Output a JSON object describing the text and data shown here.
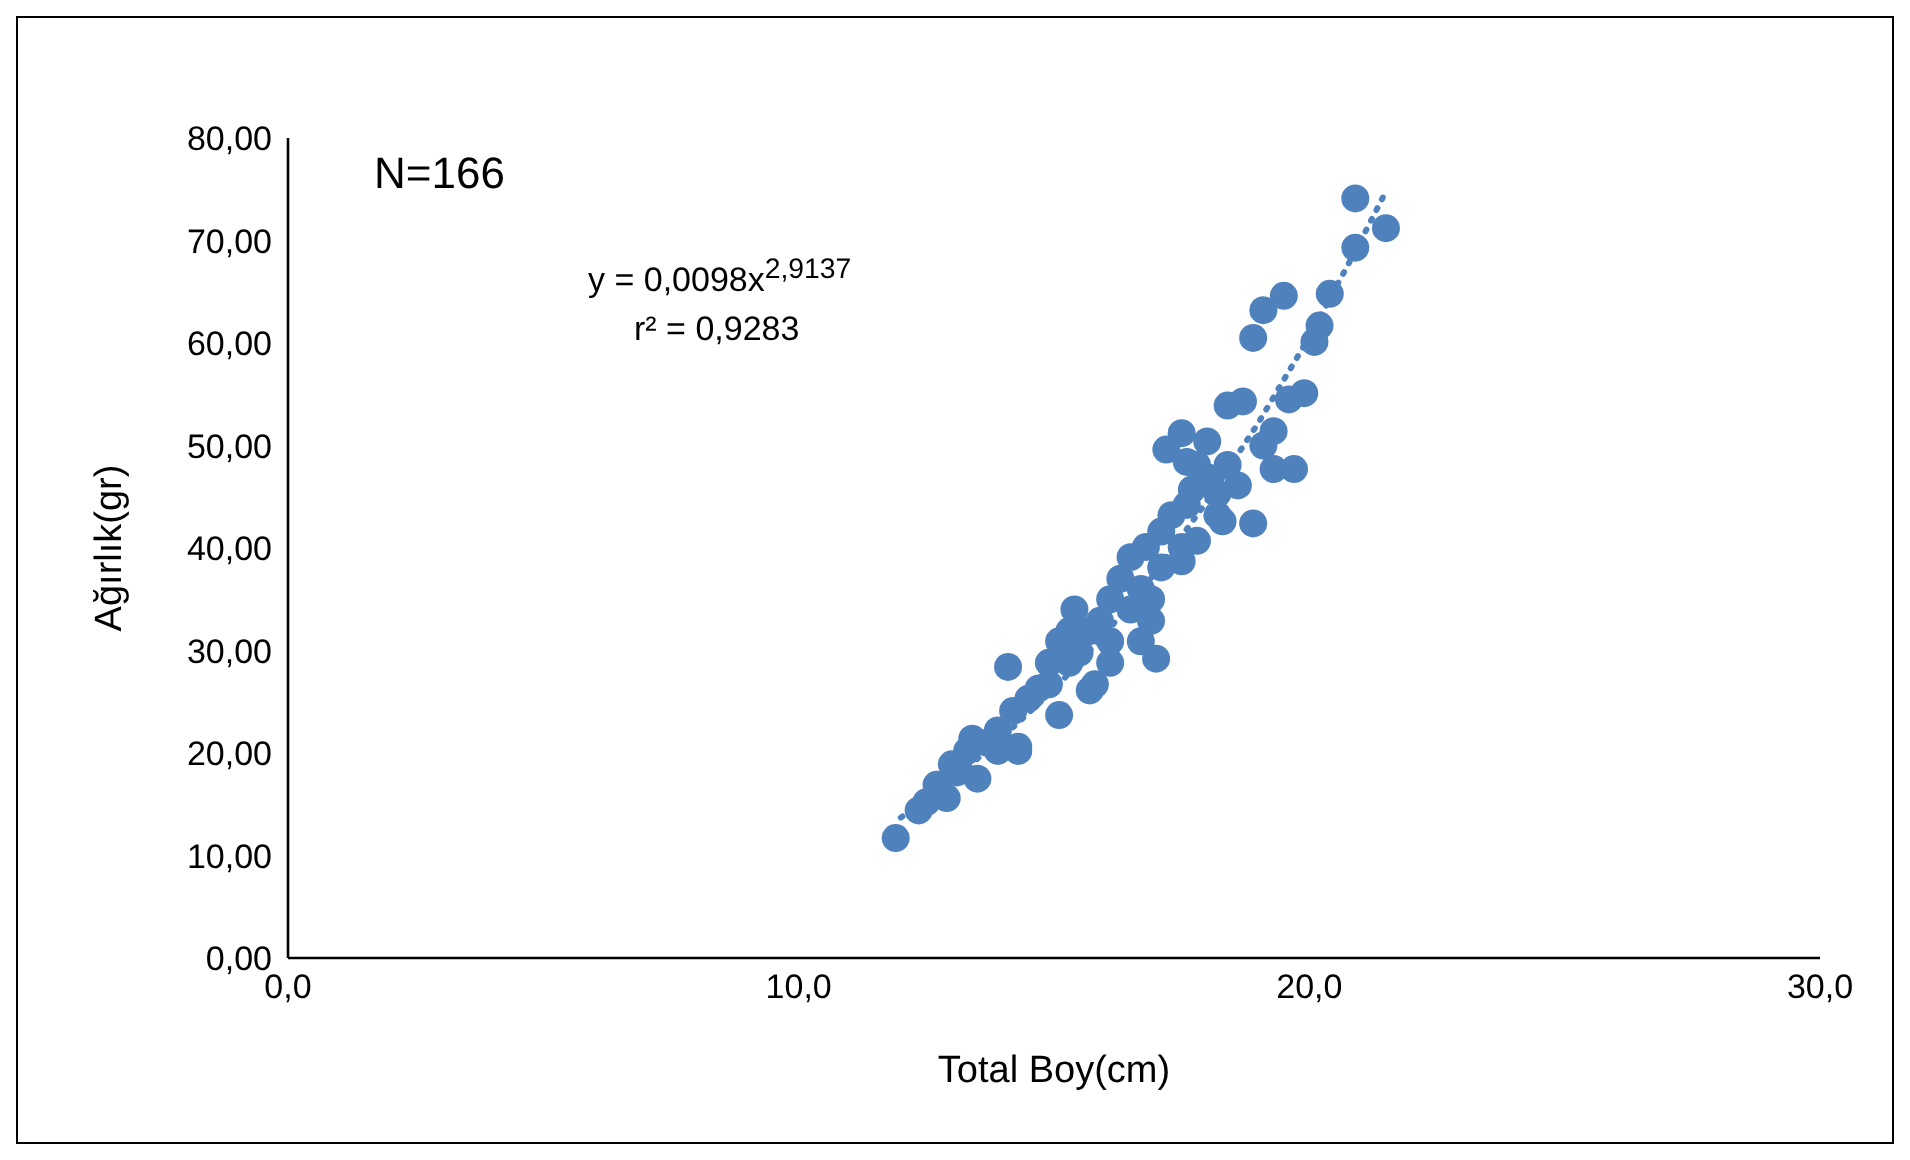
{
  "chart_data": {
    "type": "scatter",
    "xlabel": "Total Boy(cm)",
    "ylabel": "Ağırlık(gr)",
    "annotations": [
      "N=166",
      "y = 0,0098x$^{2,9137}$",
      "r² = 0,9283"
    ],
    "xlim": [
      0,
      30
    ],
    "xticks": [
      {
        "value": 0,
        "label": "0,0"
      },
      {
        "value": 10,
        "label": "10,0"
      },
      {
        "value": 20,
        "label": "20,0"
      },
      {
        "value": 30,
        "label": "30,0"
      }
    ],
    "ylim": [
      0,
      80
    ],
    "yticks": [
      {
        "value": 0,
        "label": "0,00"
      },
      {
        "value": 10,
        "label": "10,00"
      },
      {
        "value": 20,
        "label": "20,00"
      },
      {
        "value": 30,
        "label": "30,00"
      },
      {
        "value": 40,
        "label": "40,00"
      },
      {
        "value": 50,
        "label": "50,00"
      },
      {
        "value": 60,
        "label": "60,00"
      },
      {
        "value": 70,
        "label": "70,00"
      },
      {
        "value": 80,
        "label": "80,00"
      }
    ],
    "grid": false,
    "legend": false,
    "marker": "circle",
    "series": [
      {
        "color": "#4f81bd",
        "x": [
          11.9,
          12.35,
          12.9,
          13.1,
          13.4,
          14.1,
          14.3,
          15.1,
          15.7,
          16.9,
          17.5,
          18.3,
          18.9,
          19.7,
          18.9,
          19.1,
          19.5,
          19.9,
          20.4,
          20.2,
          20.1,
          20.9,
          20.9,
          21.5,
          17.2,
          17.5,
          17.8,
          18.4,
          18.7,
          19.3,
          19.3,
          19.6,
          19.1,
          18.2,
          12.5,
          12.7,
          13.0,
          13.3,
          13.7,
          13.9,
          13.9,
          14.2,
          14.5,
          14.7,
          14.9,
          15.1,
          15.3,
          15.3,
          15.5,
          15.7,
          15.9,
          16.1,
          16.1,
          16.3,
          16.5,
          16.5,
          16.7,
          16.8,
          16.9,
          17.1,
          17.1,
          17.3,
          17.5,
          17.6,
          17.7,
          17.8,
          18.0,
          18.2,
          18.4,
          18.6,
          17.6,
          18.0,
          16.1,
          14.3,
          13.5,
          15.8,
          16.7,
          17.0,
          14.9,
          15.4
        ],
        "values": [
          11.7,
          14.4,
          15.6,
          18.1,
          21.4,
          28.4,
          20.2,
          23.7,
          26.1,
          35.0,
          38.7,
          42.6,
          42.4,
          47.7,
          60.5,
          63.2,
          64.6,
          55.1,
          64.8,
          61.7,
          60.1,
          69.3,
          74.1,
          71.2,
          49.6,
          51.2,
          48.1,
          53.9,
          54.3,
          47.7,
          51.4,
          54.5,
          50.0,
          43.2,
          15.2,
          16.9,
          18.9,
          20.2,
          21.0,
          22.2,
          20.2,
          24.1,
          25.3,
          26.3,
          28.8,
          30.9,
          31.9,
          28.8,
          29.8,
          31.9,
          32.9,
          35.0,
          30.9,
          37.0,
          34.0,
          39.1,
          36.0,
          40.1,
          32.9,
          38.1,
          41.6,
          43.2,
          40.1,
          44.2,
          45.7,
          40.7,
          46.9,
          45.3,
          48.1,
          46.1,
          48.4,
          50.4,
          28.8,
          20.6,
          17.5,
          26.7,
          30.9,
          29.2,
          26.7,
          34.0
        ]
      },
      {
        "type": "line",
        "color": "#4f81bd",
        "line_style": "dotted",
        "marker": "none",
        "x": [
          12,
          13,
          14,
          15,
          16,
          17,
          18,
          19,
          20,
          21,
          21.5
        ],
        "values": [
          13.7,
          17.3,
          21.6,
          26.2,
          31.6,
          37.7,
          44.6,
          52.2,
          60.6,
          69.9,
          74.8
        ]
      }
    ]
  }
}
